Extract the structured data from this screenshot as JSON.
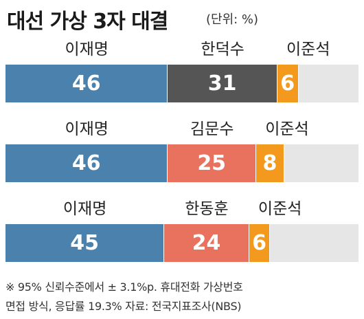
{
  "title": "대선 가상 3자 대결",
  "unit": "(단위: %)",
  "colors": {
    "lee_jaemyung": "#4a82ad",
    "han_duksoo": "#555555",
    "kim_moonsoo": "#e8725e",
    "han_donghoon": "#e8725e",
    "lee_junseok": "#f39a1e",
    "remainder": "#e6e6e6"
  },
  "chart_data": [
    {
      "type": "bar",
      "orientation": "horizontal-stacked",
      "xlim": [
        0,
        100
      ],
      "series": [
        {
          "name": "이재명",
          "value": 46,
          "color": "#4a82ad"
        },
        {
          "name": "한덕수",
          "value": 31,
          "color": "#555555"
        },
        {
          "name": "이준석",
          "value": 6,
          "color": "#f39a1e"
        }
      ]
    },
    {
      "type": "bar",
      "orientation": "horizontal-stacked",
      "xlim": [
        0,
        100
      ],
      "series": [
        {
          "name": "이재명",
          "value": 46,
          "color": "#4a82ad"
        },
        {
          "name": "김문수",
          "value": 25,
          "color": "#e8725e"
        },
        {
          "name": "이준석",
          "value": 8,
          "color": "#f39a1e"
        }
      ]
    },
    {
      "type": "bar",
      "orientation": "horizontal-stacked",
      "xlim": [
        0,
        100
      ],
      "series": [
        {
          "name": "이재명",
          "value": 45,
          "color": "#4a82ad"
        },
        {
          "name": "한동훈",
          "value": 24,
          "color": "#e8725e"
        },
        {
          "name": "이준석",
          "value": 6,
          "color": "#f39a1e"
        }
      ]
    }
  ],
  "footnote": {
    "line1": "※ 95% 신뢰수준에서 ± 3.1%p. 휴대전화 가상번호",
    "line2": "면접 방식, 응답률 19.3%  자료: 전국지표조사(NBS)"
  }
}
